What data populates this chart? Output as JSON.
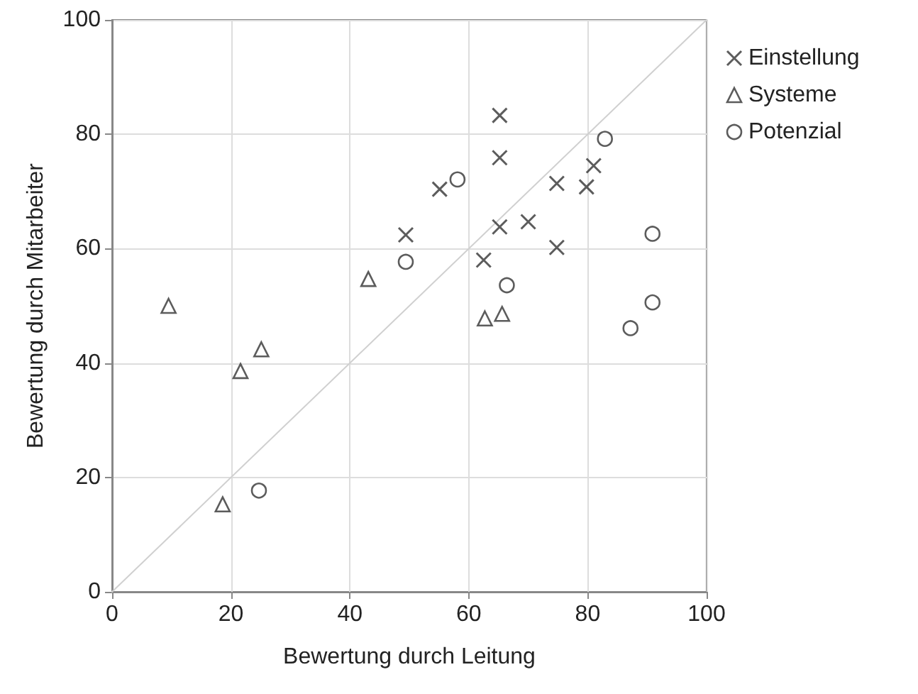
{
  "chart_data": {
    "type": "scatter",
    "xlabel": "Bewertung durch Leitung",
    "ylabel": "Bewertung durch Mitarbeiter",
    "xlim": [
      0,
      100
    ],
    "ylim": [
      0,
      100
    ],
    "xticks": [
      0,
      20,
      40,
      60,
      80,
      100
    ],
    "yticks": [
      0,
      20,
      40,
      60,
      80,
      100
    ],
    "grid": true,
    "legend": "right",
    "series": [
      {
        "type": "line",
        "color": "#d0d0d0",
        "marker": "none",
        "x": [
          0,
          100
        ],
        "values": [
          0,
          100
        ]
      },
      {
        "name": "Einstellung",
        "color": "#333333",
        "marker": "cross",
        "x": [
          49.4,
          65.2,
          65.2,
          55.1,
          74.8,
          81.0,
          79.8,
          65.2,
          70.0,
          74.8,
          62.5
        ],
        "values": [
          62.4,
          83.3,
          75.9,
          70.4,
          71.4,
          74.5,
          70.8,
          63.8,
          64.7,
          60.2,
          58.0
        ]
      },
      {
        "name": "Systeme",
        "color": "#333333",
        "marker": "triangle",
        "x": [
          9.5,
          25.1,
          21.6,
          18.6,
          43.1,
          62.7,
          65.6
        ],
        "values": [
          50.0,
          42.4,
          38.6,
          15.3,
          54.7,
          47.8,
          48.6
        ]
      },
      {
        "name": "Potenzial",
        "color": "#333333",
        "marker": "circle",
        "x": [
          24.7,
          49.4,
          58.1,
          82.9,
          90.9,
          66.4,
          90.9,
          87.2
        ],
        "values": [
          17.7,
          57.7,
          72.1,
          79.2,
          62.6,
          53.6,
          50.6,
          46.1
        ]
      }
    ]
  }
}
